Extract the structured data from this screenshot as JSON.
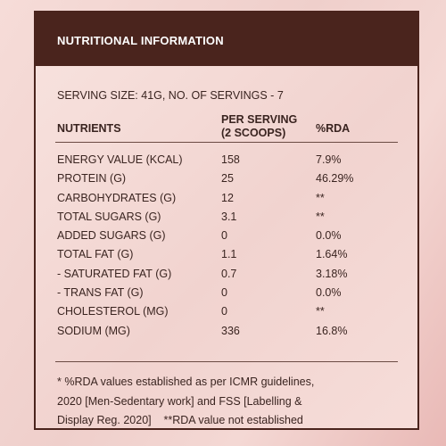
{
  "header": {
    "title": "NUTRITIONAL INFORMATION"
  },
  "serving": "SERVING SIZE: 41G, NO. OF SERVINGS - 7",
  "columns": {
    "nutrients": "NUTRIENTS",
    "per_serving_line1": "PER SERVING",
    "per_serving_line2": "(2 SCOOPS)",
    "rda": "%RDA"
  },
  "rows": [
    {
      "name": "ENERGY VALUE (KCAL)",
      "value": "158",
      "rda": "7.9%"
    },
    {
      "name": "PROTEIN (G)",
      "value": "25",
      "rda": "46.29%"
    },
    {
      "name": "CARBOHYDRATES (G)",
      "value": "12",
      "rda": "**"
    },
    {
      "name": "TOTAL SUGARS (G)",
      "value": "3.1",
      "rda": "**"
    },
    {
      "name": "ADDED SUGARS (G)",
      "value": "0",
      "rda": "0.0%"
    },
    {
      "name": "TOTAL FAT (G)",
      "value": "1.1",
      "rda": "1.64%"
    },
    {
      "name": "- SATURATED FAT (G)",
      "value": "0.7",
      "rda": "3.18%"
    },
    {
      "name": "- TRANS FAT (G)",
      "value": "0",
      "rda": "0.0%"
    },
    {
      "name": "CHOLESTEROL (MG)",
      "value": "0",
      "rda": "**"
    },
    {
      "name": "SODIUM (MG)",
      "value": "336",
      "rda": "16.8%"
    }
  ],
  "footnote": {
    "line1": "* %RDA values established as per ICMR guidelines,",
    "line2": "2020 [Men-Sedentary work] and FSS [Labelling &",
    "line3": "Display Reg. 2020]    **RDA value not established"
  }
}
